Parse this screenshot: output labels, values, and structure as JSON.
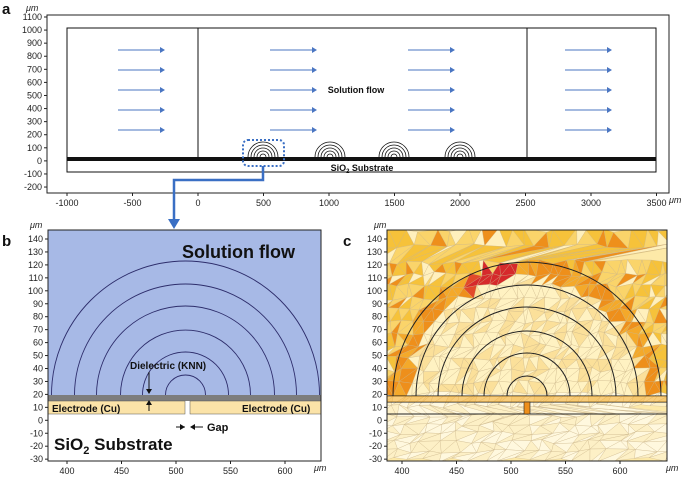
{
  "panels": {
    "a": {
      "label": "a",
      "unit": "μm",
      "x_ticks": [
        "-1000",
        "-500",
        "0",
        "500",
        "1000",
        "1500",
        "2000",
        "2500",
        "3000",
        "3500"
      ],
      "y_ticks": [
        "1100",
        "1000",
        "900",
        "800",
        "700",
        "600",
        "500",
        "400",
        "300",
        "200",
        "100",
        "0",
        "-100",
        "-200"
      ],
      "flow_label": "Solution flow",
      "substrate_label": "SiO",
      "substrate_sub": "2",
      "substrate_suffix": " Substrate"
    },
    "b": {
      "label": "b",
      "unit": "μm",
      "x_ticks": [
        "400",
        "450",
        "500",
        "550",
        "600"
      ],
      "y_ticks": [
        "140",
        "130",
        "120",
        "110",
        "100",
        "90",
        "80",
        "70",
        "60",
        "50",
        "40",
        "30",
        "20",
        "10",
        "0",
        "-10",
        "-20",
        "-30"
      ],
      "flow_label": "Solution flow",
      "dielectric_label": "Dielectric (KNN)",
      "electrode_left": "Electrode (Cu)",
      "electrode_right": "Electrode (Cu)",
      "gap_label": "Gap",
      "substrate_label": "SiO",
      "substrate_sub": "2",
      "substrate_suffix": " Substrate"
    },
    "c": {
      "label": "c",
      "unit": "μm",
      "x_ticks": [
        "400",
        "450",
        "500",
        "550",
        "600"
      ],
      "y_ticks": [
        "140",
        "130",
        "120",
        "110",
        "100",
        "90",
        "80",
        "70",
        "60",
        "50",
        "40",
        "30",
        "20",
        "10",
        "0",
        "-10",
        "-20",
        "-30"
      ]
    }
  },
  "colors": {
    "flow_blue": "#a7b9e6",
    "arrow_blue": "#4a76c2",
    "electrode": "#fbe3a8",
    "dielectric": "#7d7d7d",
    "mesh_light": "#fff2c2",
    "mesh_mid": "#f6c23a",
    "mesh_orange": "#ee8f1b",
    "mesh_red": "#d6292b"
  }
}
